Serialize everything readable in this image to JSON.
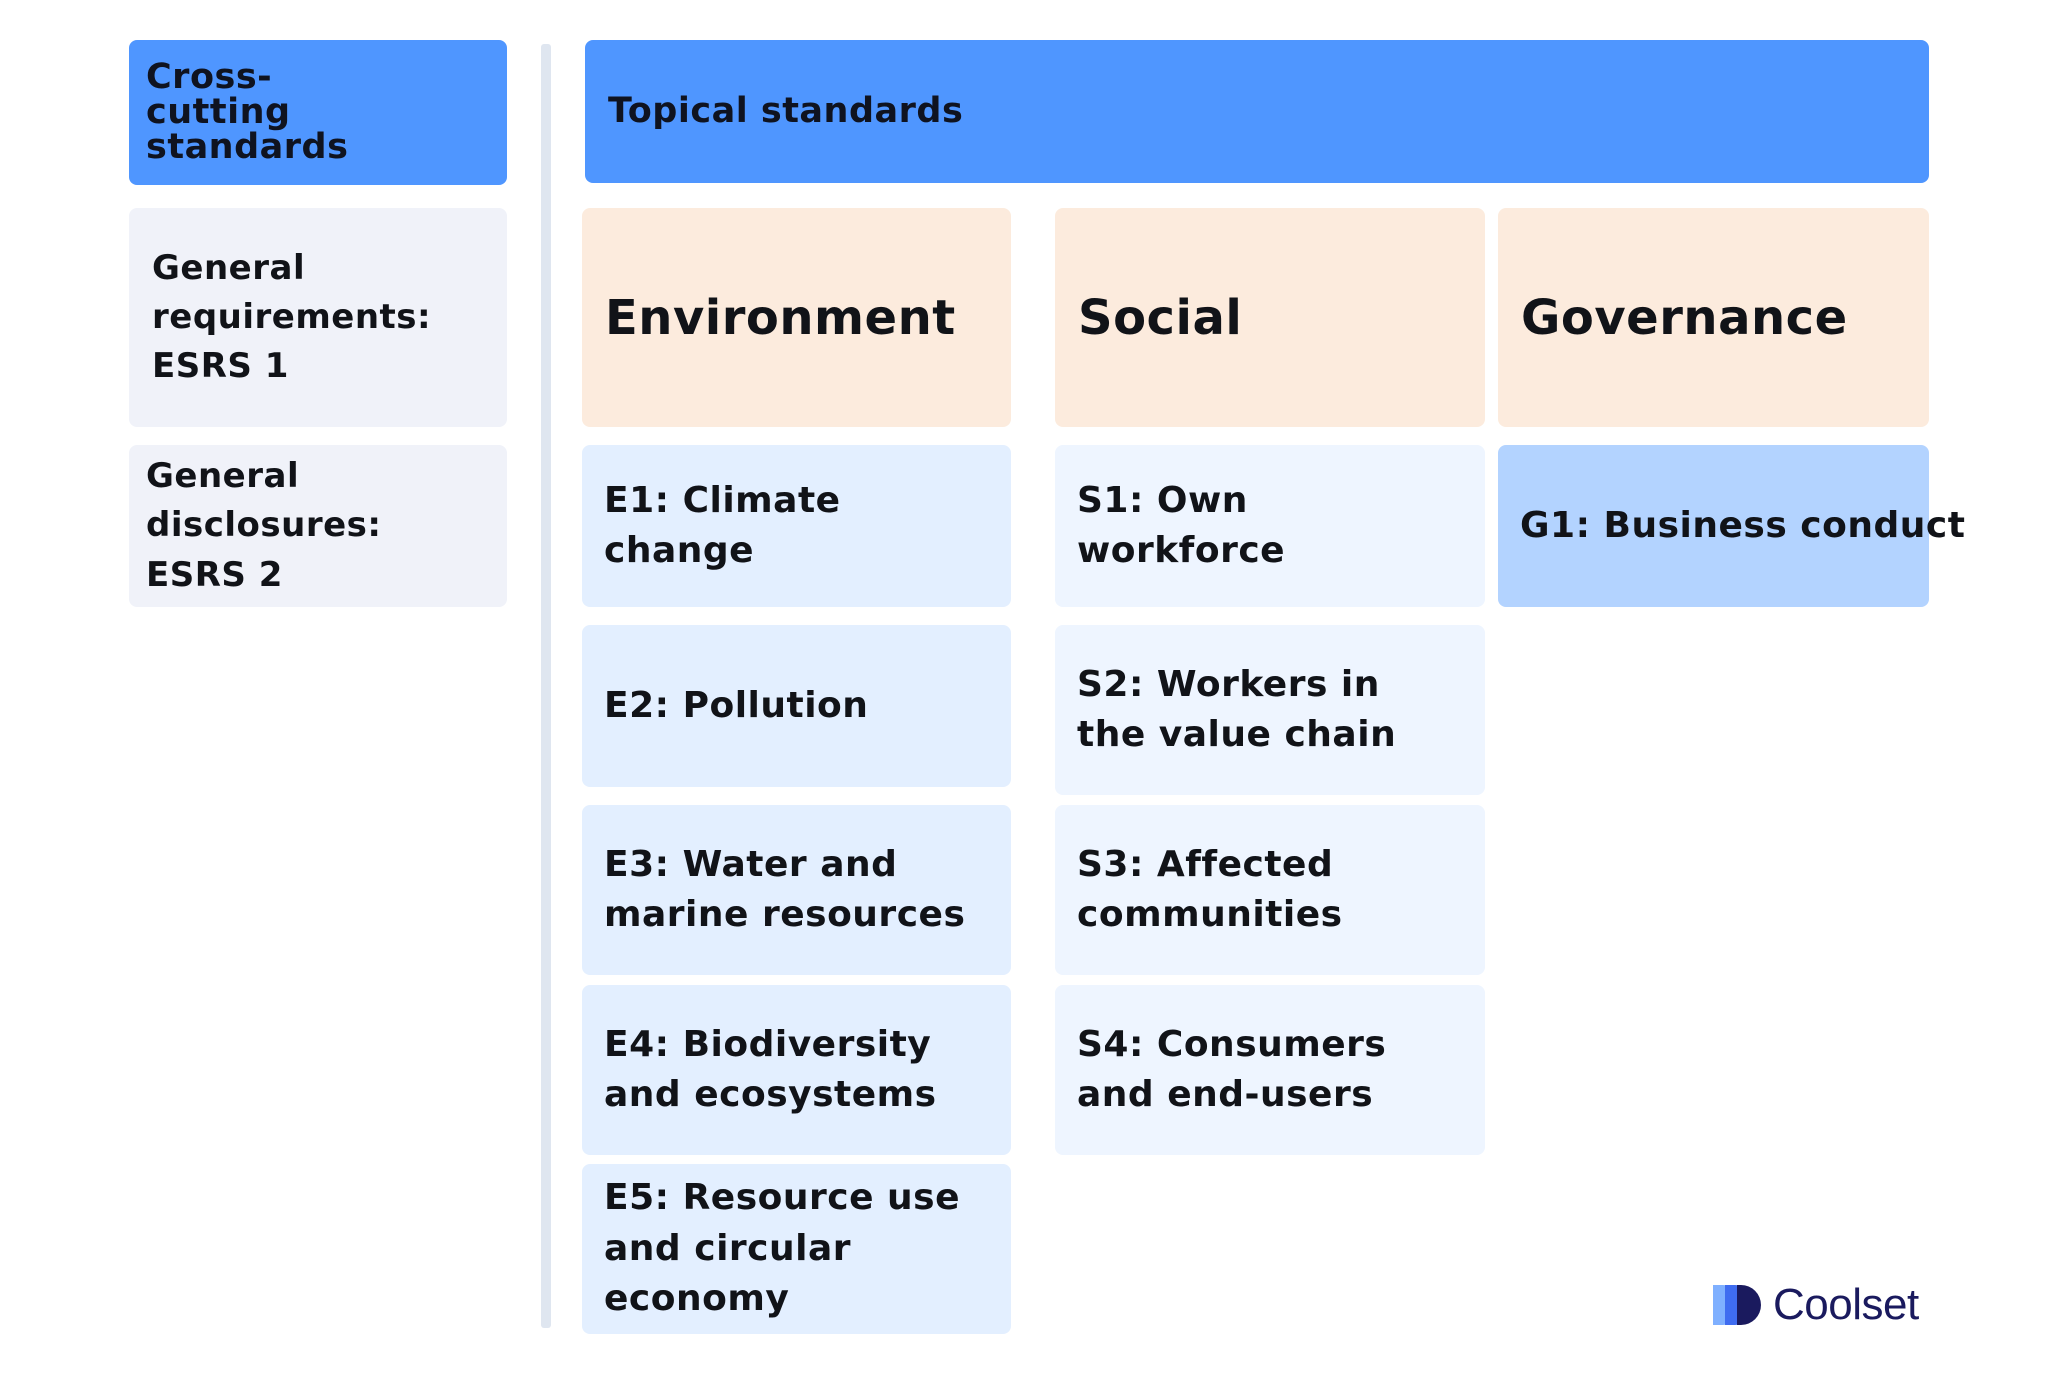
{
  "cross_cutting": {
    "header": "Cross-cutting standards",
    "items": [
      "General requirements: ESRS 1",
      "General disclosures: ESRS 2"
    ]
  },
  "topical": {
    "header": "Topical standards",
    "columns": [
      {
        "title": "Environment",
        "items": [
          "E1: Climate change",
          "E2: Pollution",
          "E3: Water and marine resources",
          "E4: Biodiversity and ecosystems",
          "E5: Resource use and circular economy"
        ]
      },
      {
        "title": "Social",
        "items": [
          "S1: Own workforce",
          "S2: Workers in the value chain",
          "S3: Affected communities",
          "S4: Consumers and end-users"
        ]
      },
      {
        "title": "Governance",
        "items": [
          "G1: Business conduct"
        ]
      }
    ]
  },
  "logo": {
    "text": "Coolset",
    "colors": [
      "#7fb0ff",
      "#3f6cf0",
      "#1a1a5e"
    ]
  }
}
